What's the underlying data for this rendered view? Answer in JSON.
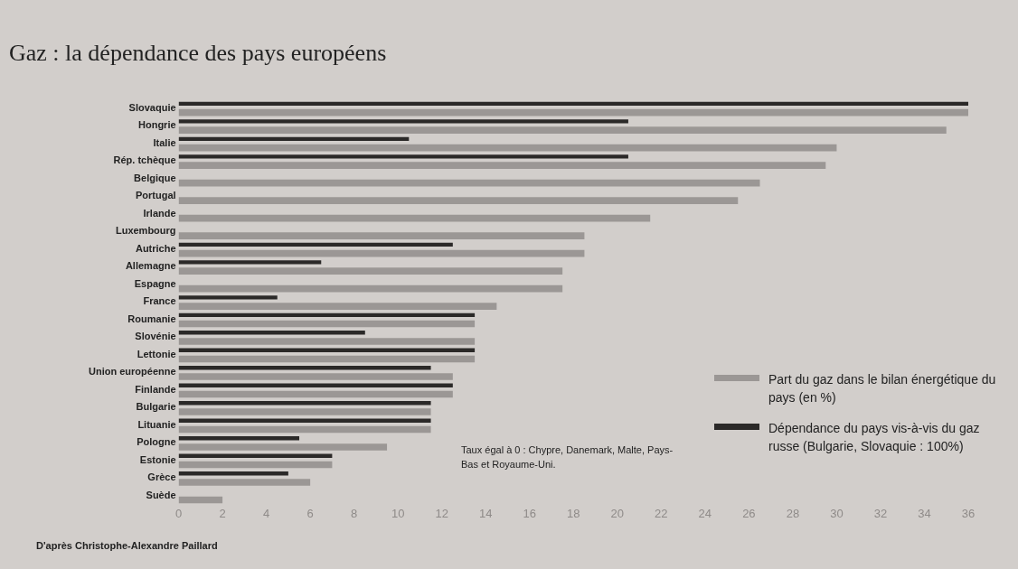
{
  "chart_data": {
    "type": "bar",
    "orientation": "horizontal",
    "title": "Gaz : la dépendance des pays européens",
    "categories": [
      "Slovaquie",
      "Hongrie",
      "Italie",
      "Rép. tchèque",
      "Belgique",
      "Portugal",
      "Irlande",
      "Luxembourg",
      "Autriche",
      "Allemagne",
      "Espagne",
      "France",
      "Roumanie",
      "Slovénie",
      "Lettonie",
      "Union européenne",
      "Finlande",
      "Bulgarie",
      "Lituanie",
      "Pologne",
      "Estonie",
      "Grèce",
      "Suède"
    ],
    "series": [
      {
        "name": "Part du gaz dans le bilan énergétique du pays (en %)",
        "color": "#9b9795",
        "values": [
          36,
          35,
          30,
          29.5,
          26.5,
          25.5,
          21.5,
          18.5,
          18.5,
          17.5,
          17.5,
          14.5,
          13.5,
          13.5,
          13.5,
          12.5,
          12.5,
          11.5,
          11.5,
          9.5,
          7,
          6,
          2
        ]
      },
      {
        "name": "Dépendance du pays vis-à-vis du gaz russe (Bulgarie, Slovaquie : 100%)",
        "color": "#2b2928",
        "values": [
          36,
          20.5,
          10.5,
          20.5,
          null,
          null,
          null,
          null,
          12.5,
          6.5,
          null,
          4.5,
          13.5,
          8.5,
          13.5,
          11.5,
          12.5,
          11.5,
          11.5,
          5.5,
          7,
          5,
          null
        ]
      }
    ],
    "xlim": [
      0,
      36
    ],
    "xticks": [
      0,
      2,
      4,
      6,
      8,
      10,
      12,
      14,
      16,
      18,
      20,
      22,
      24,
      26,
      28,
      30,
      32,
      34,
      36
    ],
    "grid": false,
    "legend": "bottom right",
    "annotations": [
      "Taux égal à 0 : Chypre, Danemark, Malte, Pays-Bas et Royaume-Uni.",
      "D'après Christophe-Alexandre Paillard"
    ]
  }
}
